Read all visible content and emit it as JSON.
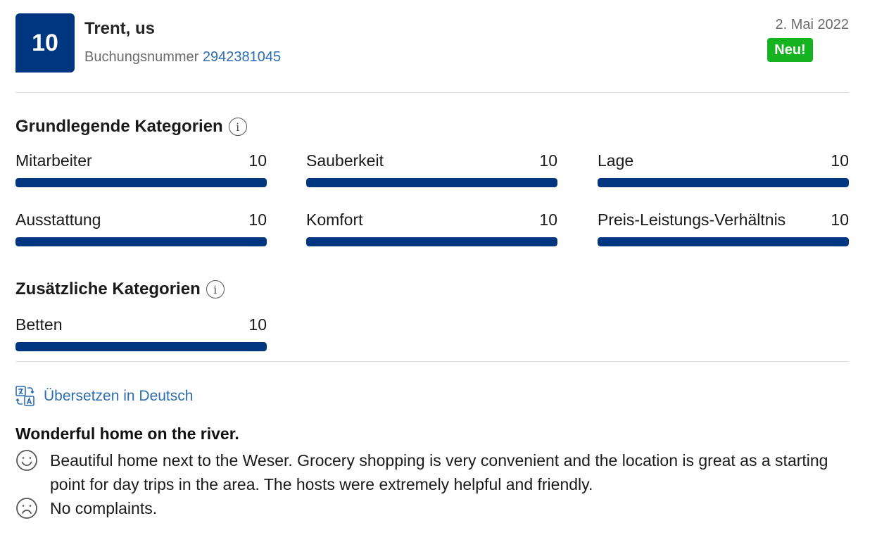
{
  "review": {
    "score": "10",
    "guest": "Trent, us",
    "booking_label": "Buchungsnummer",
    "booking_number": "2942381045",
    "date": "2. Mai 2022",
    "badge": "Neu!"
  },
  "basic": {
    "title": "Grundlegende Kategorien",
    "info_icon": "info-icon",
    "items": [
      {
        "label": "Mitarbeiter",
        "score": "10",
        "fill": 1.0
      },
      {
        "label": "Sauberkeit",
        "score": "10",
        "fill": 1.0
      },
      {
        "label": "Lage",
        "score": "10",
        "fill": 1.0
      },
      {
        "label": "Ausstattung",
        "score": "10",
        "fill": 1.0
      },
      {
        "label": "Komfort",
        "score": "10",
        "fill": 1.0
      },
      {
        "label": "Preis-Leistungs-Verhältnis",
        "score": "10",
        "fill": 1.0
      }
    ]
  },
  "extra": {
    "title": "Zusätzliche Kategorien",
    "info_icon": "info-icon",
    "items": [
      {
        "label": "Betten",
        "score": "10",
        "fill": 1.0
      }
    ]
  },
  "translate": {
    "label": "Übersetzen in Deutsch",
    "icon": "translate-icon"
  },
  "content": {
    "title": "Wonderful home on the river.",
    "positive": "Beautiful home next to the Weser. Grocery shopping is very convenient and the location is great as a starting point for day trips in the area. The hosts were extremely helpful and friendly.",
    "positive_icon": "smiley-icon",
    "negative": "No complaints.",
    "negative_icon": "frown-icon"
  },
  "colors": {
    "brand": "#003580",
    "link": "#2c6cb3",
    "new_badge": "#16b320"
  }
}
